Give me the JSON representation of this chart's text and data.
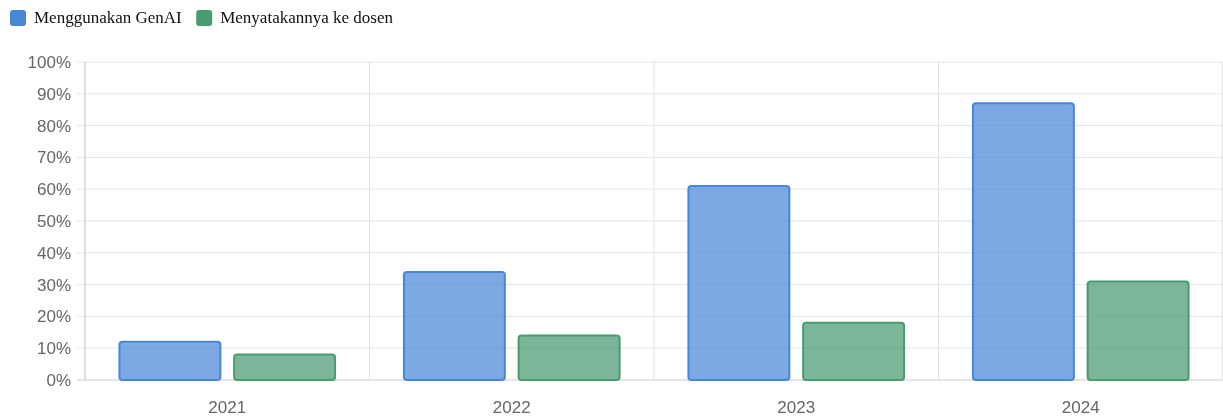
{
  "chart_data": {
    "type": "bar",
    "categories": [
      "2021",
      "2022",
      "2023",
      "2024"
    ],
    "series": [
      {
        "name": "Menggunakan GenAI",
        "color": "#4a86d8",
        "values": [
          12,
          34,
          61,
          87
        ]
      },
      {
        "name": "Menyatakannya ke dosen",
        "color": "#4a9a72",
        "values": [
          8,
          14,
          18,
          31
        ]
      }
    ],
    "ylim": [
      0,
      100
    ],
    "yticks": [
      {
        "value": 0,
        "label": "0%"
      },
      {
        "value": 10,
        "label": "10%"
      },
      {
        "value": 20,
        "label": "20%"
      },
      {
        "value": 30,
        "label": "30%"
      },
      {
        "value": 40,
        "label": "40%"
      },
      {
        "value": 50,
        "label": "50%"
      },
      {
        "value": 60,
        "label": "60%"
      },
      {
        "value": 70,
        "label": "70%"
      },
      {
        "value": 80,
        "label": "80%"
      },
      {
        "value": 90,
        "label": "90%"
      },
      {
        "value": 100,
        "label": "100%"
      }
    ],
    "grid": true,
    "legend": "top left"
  }
}
